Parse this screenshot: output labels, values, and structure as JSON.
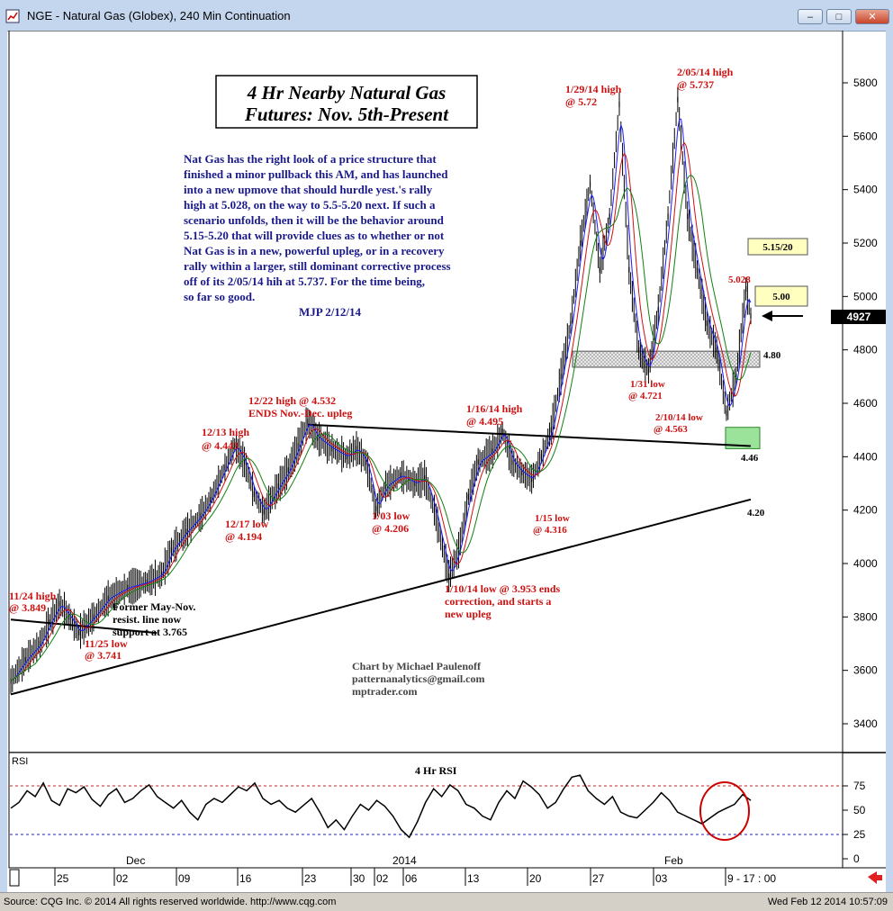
{
  "window": {
    "title": "NGE - Natural Gas (Globex), 240 Min Continuation",
    "buttons": [
      "minimize",
      "restore",
      "close"
    ]
  },
  "status_bar": {
    "left": "Source: CQG Inc. © 2014 All rights reserved worldwide. http://www.cqg.com",
    "right": "Wed Feb 12 2014 10:57:09"
  },
  "chart_data": [
    {
      "type": "candlestick",
      "title": "4 Hr Nearby Natural Gas Futures:  Nov. 5th-Present",
      "title_lines": [
        "4 Hr Nearby Natural Gas",
        "Futures:  Nov. 5th-Present"
      ],
      "ylim": [
        3300,
        5900
      ],
      "y_ticks": [
        3400,
        3600,
        3800,
        4000,
        4200,
        4400,
        4600,
        4800,
        5000,
        5200,
        5400,
        5600,
        5800
      ],
      "y_tick_labels": [
        "3400",
        "3600",
        "3800",
        "4000",
        "4200",
        "4400",
        "4600",
        "4800",
        "5000",
        "5200",
        "5400",
        "5600",
        "5800"
      ],
      "last_price": "4927",
      "price_path": [
        {
          "x": 0,
          "y": 3560
        },
        {
          "x": 3,
          "y": 3640
        },
        {
          "x": 6,
          "y": 3700
        },
        {
          "x": 8,
          "y": 3780
        },
        {
          "x": 10,
          "y": 3849
        },
        {
          "x": 12,
          "y": 3800
        },
        {
          "x": 14,
          "y": 3741
        },
        {
          "x": 17,
          "y": 3800
        },
        {
          "x": 20,
          "y": 3870
        },
        {
          "x": 24,
          "y": 3910
        },
        {
          "x": 28,
          "y": 3930
        },
        {
          "x": 31,
          "y": 3960
        },
        {
          "x": 33,
          "y": 4050
        },
        {
          "x": 36,
          "y": 4120
        },
        {
          "x": 39,
          "y": 4180
        },
        {
          "x": 41,
          "y": 4240
        },
        {
          "x": 44,
          "y": 4360
        },
        {
          "x": 46,
          "y": 4443
        },
        {
          "x": 48,
          "y": 4380
        },
        {
          "x": 50,
          "y": 4260
        },
        {
          "x": 52,
          "y": 4194
        },
        {
          "x": 55,
          "y": 4290
        },
        {
          "x": 57,
          "y": 4350
        },
        {
          "x": 59,
          "y": 4440
        },
        {
          "x": 61,
          "y": 4532
        },
        {
          "x": 63,
          "y": 4470
        },
        {
          "x": 66,
          "y": 4430
        },
        {
          "x": 69,
          "y": 4400
        },
        {
          "x": 71,
          "y": 4430
        },
        {
          "x": 73,
          "y": 4380
        },
        {
          "x": 75,
          "y": 4206
        },
        {
          "x": 77,
          "y": 4290
        },
        {
          "x": 80,
          "y": 4330
        },
        {
          "x": 83,
          "y": 4300
        },
        {
          "x": 85,
          "y": 4320
        },
        {
          "x": 87,
          "y": 4200
        },
        {
          "x": 90,
          "y": 3953
        },
        {
          "x": 92,
          "y": 4050
        },
        {
          "x": 94,
          "y": 4250
        },
        {
          "x": 96,
          "y": 4380
        },
        {
          "x": 99,
          "y": 4420
        },
        {
          "x": 101,
          "y": 4495
        },
        {
          "x": 103,
          "y": 4380
        },
        {
          "x": 105,
          "y": 4340
        },
        {
          "x": 107,
          "y": 4316
        },
        {
          "x": 109,
          "y": 4400
        },
        {
          "x": 111,
          "y": 4500
        },
        {
          "x": 113,
          "y": 4700
        },
        {
          "x": 115,
          "y": 4900
        },
        {
          "x": 117,
          "y": 5200
        },
        {
          "x": 119,
          "y": 5420
        },
        {
          "x": 121,
          "y": 5100
        },
        {
          "x": 123,
          "y": 5300
        },
        {
          "x": 125,
          "y": 5720
        },
        {
          "x": 127,
          "y": 5100
        },
        {
          "x": 129,
          "y": 4800
        },
        {
          "x": 131,
          "y": 4721
        },
        {
          "x": 133,
          "y": 4950
        },
        {
          "x": 135,
          "y": 5300
        },
        {
          "x": 137,
          "y": 5737
        },
        {
          "x": 139,
          "y": 5300
        },
        {
          "x": 141,
          "y": 5100
        },
        {
          "x": 143,
          "y": 4900
        },
        {
          "x": 145,
          "y": 4800
        },
        {
          "x": 147,
          "y": 4563
        },
        {
          "x": 149,
          "y": 4700
        },
        {
          "x": 151,
          "y": 5028
        },
        {
          "x": 152,
          "y": 4927
        }
      ],
      "trendlines": [
        {
          "name": "Former May-Nov. resist. line now support at 3.765",
          "points": [
            [
              0,
              3790
            ],
            [
              30,
              3740
            ]
          ]
        },
        {
          "name": "support 4.20",
          "points": [
            [
              0,
              3510
            ],
            [
              152,
              4240
            ]
          ]
        },
        {
          "name": "resistance 4.46",
          "points": [
            [
              61,
              4520
            ],
            [
              152,
              4440
            ]
          ]
        }
      ],
      "zones": [
        {
          "label": "4.80",
          "y_range": [
            4735,
            4795
          ]
        },
        {
          "label": "4.46",
          "y_range": [
            4430,
            4510
          ]
        }
      ],
      "target_boxes": [
        "5.15/20",
        "5.00"
      ],
      "annotations": [
        {
          "text": "11/24 high",
          "sub": "@ 3.849"
        },
        {
          "text": "11/25 low",
          "sub": "@ 3.741"
        },
        {
          "text": "12/13 high",
          "sub": "@ 4.443"
        },
        {
          "text": "12/17 low",
          "sub": "@ 4.194"
        },
        {
          "text": "12/22 high @ 4.532",
          "sub": "ENDS Nov.-Dec. upleg"
        },
        {
          "text": "1/03 low",
          "sub": "@ 4.206"
        },
        {
          "text": "1/10/14 low @ 3.953 ends",
          "sub": "correction, and starts a",
          "sub2": "new upleg"
        },
        {
          "text": "1/16/14 high",
          "sub": "@ 4.495"
        },
        {
          "text": "1/15 low",
          "sub": "@ 4.316"
        },
        {
          "text": "1/29/14 high",
          "sub": "@ 5.72"
        },
        {
          "text": "1/31 low",
          "sub": "@ 4.721"
        },
        {
          "text": "2/05/14 high",
          "sub": "@ 5.737"
        },
        {
          "text": "2/10/14 low",
          "sub": "@ 4.563"
        },
        {
          "text": "5.028"
        },
        {
          "text": "4.80"
        },
        {
          "text": "4.46"
        },
        {
          "text": "4.20"
        }
      ],
      "support_note": [
        "Former May-Nov.",
        "resist. line now",
        "support at 3.765"
      ],
      "commentary": [
        "Nat Gas has the right look of a price structure that",
        "finished a minor pullback this AM, and has launched",
        "into a new upmove that should hurdle yest.'s rally",
        "high at 5.028, on the way to 5.5-5.20 next. If such a",
        "scenario unfolds, then it will be the behavior around",
        "5.15-5.20 that will provide clues as to whether or not",
        "Nat Gas is in a new, powerful upleg, or in a recovery",
        "rally within a larger, still dominant corrective process",
        "off of its 2/05/14 hih at 5.737.  For the time being,",
        "so far so good."
      ],
      "signature": "MJP  2/12/14",
      "credits": [
        "Chart by Michael Paulenoff",
        "patternanalytics@gmail.com",
        "mptrader.com"
      ]
    },
    {
      "type": "line",
      "title": "4 Hr RSI",
      "panel_label": "RSI",
      "ylim": [
        0,
        100
      ],
      "y_ticks": [
        0,
        25,
        50,
        75
      ],
      "y_tick_labels": [
        "0",
        "25",
        "50",
        "75"
      ],
      "reference_lines": [
        25,
        75
      ],
      "series": [
        {
          "values": [
            52,
            58,
            70,
            64,
            78,
            60,
            55,
            72,
            68,
            74,
            61,
            54,
            66,
            72,
            58,
            62,
            70,
            76,
            64,
            58,
            52,
            60,
            48,
            40,
            56,
            62,
            58,
            66,
            74,
            70,
            78,
            62,
            56,
            60,
            52,
            48,
            55,
            62,
            48,
            32,
            40,
            30,
            44,
            56,
            50,
            60,
            54,
            44,
            30,
            22,
            38,
            58,
            72,
            64,
            76,
            70,
            56,
            52,
            44,
            40,
            58,
            70,
            62,
            80,
            74,
            66,
            52,
            58,
            72,
            84,
            86,
            70,
            62,
            56,
            64,
            48,
            44,
            42,
            50,
            58,
            68,
            60,
            48,
            44,
            40,
            36,
            42,
            48,
            52,
            56,
            66,
            60
          ]
        }
      ],
      "circled_region": "latest bars near Feb 10-12"
    }
  ],
  "x_axis": {
    "month_labels": [
      "Dec",
      "2014",
      "Feb"
    ],
    "day_labels": [
      "25",
      "02",
      "09",
      "16",
      "23",
      "30",
      "02",
      "06",
      "13",
      "20",
      "27",
      "03",
      "9 - 17 : 00"
    ]
  }
}
